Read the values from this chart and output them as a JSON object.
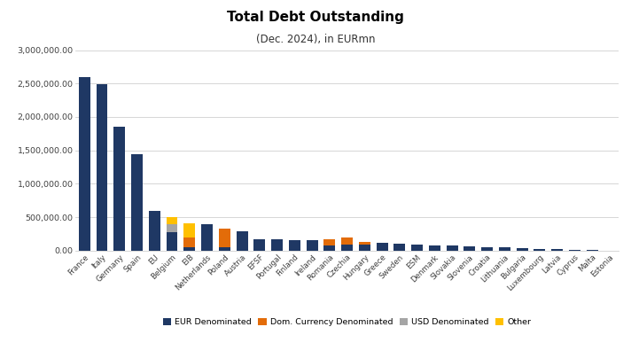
{
  "title": "Total Debt Outstanding",
  "subtitle": "(Dec. 2024), in EURmn",
  "categories": [
    "France",
    "Italy",
    "Germany",
    "Spain",
    "EU",
    "Belgium",
    "EIB",
    "Netherlands",
    "Poland",
    "Austria",
    "EFSF",
    "Portugal",
    "Finland",
    "Ireland",
    "Romania",
    "Czechia",
    "Hungary",
    "Greece",
    "Sweden",
    "ESM",
    "Denmark",
    "Slovakia",
    "Slovenia",
    "Croatia",
    "Lithuania",
    "Bulgaria",
    "Luxembourg",
    "Latvia",
    "Cyprus",
    "Malta",
    "Estonia"
  ],
  "eur": [
    2600000,
    2490000,
    1860000,
    1440000,
    600000,
    270000,
    50000,
    400000,
    50000,
    285000,
    175000,
    165000,
    155000,
    155000,
    80000,
    85000,
    85000,
    115000,
    105000,
    95000,
    80000,
    75000,
    60000,
    50000,
    45000,
    35000,
    30000,
    22000,
    15000,
    10000,
    3000
  ],
  "usd": [
    0,
    0,
    0,
    0,
    0,
    130000,
    0,
    0,
    0,
    0,
    0,
    0,
    0,
    0,
    0,
    0,
    0,
    0,
    0,
    0,
    0,
    0,
    0,
    0,
    0,
    0,
    0,
    0,
    0,
    0,
    0
  ],
  "dom": [
    0,
    0,
    0,
    0,
    0,
    0,
    150000,
    0,
    280000,
    0,
    0,
    0,
    0,
    0,
    85000,
    105000,
    50000,
    0,
    0,
    0,
    0,
    0,
    0,
    0,
    0,
    0,
    0,
    0,
    0,
    0,
    0
  ],
  "other": [
    0,
    0,
    0,
    0,
    0,
    100000,
    210000,
    0,
    0,
    0,
    0,
    0,
    0,
    0,
    0,
    0,
    0,
    0,
    0,
    0,
    0,
    0,
    0,
    0,
    0,
    0,
    0,
    0,
    0,
    0,
    0
  ],
  "eur_color": "#1f3864",
  "dom_color": "#e36c09",
  "usd_color": "#a5a5a5",
  "other_color": "#ffc000",
  "background_color": "#ffffff",
  "ylim": [
    0,
    3000000
  ],
  "yticks": [
    0,
    500000,
    1000000,
    1500000,
    2000000,
    2500000,
    3000000
  ],
  "bar_width": 0.65
}
